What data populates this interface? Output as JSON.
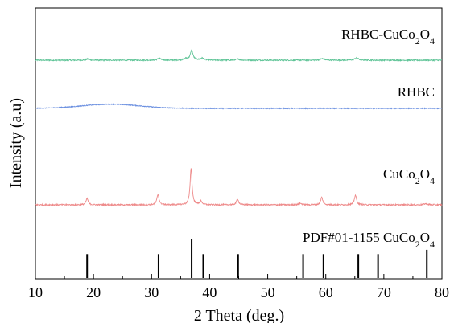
{
  "chart_data": {
    "type": "line",
    "xlabel": "2 Theta (deg.)",
    "ylabel": "Intensity (a.u)",
    "xlim": [
      10,
      80
    ],
    "x_ticks": [
      10,
      20,
      30,
      40,
      50,
      60,
      70,
      80
    ],
    "y_ticks_shown": false,
    "grid": false,
    "legend": "none",
    "series": [
      {
        "label_parts": [
          [
            "RHBC-CuCo",
            false
          ],
          [
            "2",
            true
          ],
          [
            "O",
            false
          ],
          [
            "4",
            true
          ]
        ],
        "color": "#5fc497",
        "display_offset": 0.3,
        "peak_scale": 0.06,
        "noise": 0.0035,
        "peaks": [
          {
            "x": 19.0,
            "height": 0.13,
            "width": 0.3
          },
          {
            "x": 31.3,
            "height": 0.22,
            "width": 0.3
          },
          {
            "x": 35.9,
            "height": 0.17,
            "width": 0.3
          },
          {
            "x": 36.9,
            "height": 1.0,
            "width": 0.28
          },
          {
            "x": 38.7,
            "height": 0.22,
            "width": 0.35
          },
          {
            "x": 44.9,
            "height": 0.12,
            "width": 0.35
          },
          {
            "x": 59.4,
            "height": 0.17,
            "width": 0.4
          },
          {
            "x": 65.3,
            "height": 0.24,
            "width": 0.4
          }
        ],
        "broad_humps": []
      },
      {
        "label": "RHBC",
        "color": "#6a8fe0",
        "display_offset": 0.0,
        "peak_scale": 0.06,
        "noise": 0.0025,
        "peaks": [],
        "broad_humps": [
          {
            "x": 23.0,
            "height": 0.22,
            "width": 5.0
          }
        ]
      },
      {
        "label_parts": [
          [
            "CuCo",
            false
          ],
          [
            "2",
            true
          ],
          [
            "O",
            false
          ],
          [
            "4",
            true
          ]
        ],
        "color": "#ee8a8a",
        "display_offset": -0.6,
        "peak_scale": 0.23,
        "noise": 0.004,
        "peaks": [
          {
            "x": 18.9,
            "height": 0.17,
            "width": 0.22
          },
          {
            "x": 31.1,
            "height": 0.28,
            "width": 0.22
          },
          {
            "x": 36.8,
            "height": 1.0,
            "width": 0.2
          },
          {
            "x": 38.5,
            "height": 0.1,
            "width": 0.25
          },
          {
            "x": 44.8,
            "height": 0.16,
            "width": 0.22
          },
          {
            "x": 55.6,
            "height": 0.04,
            "width": 0.3
          },
          {
            "x": 59.3,
            "height": 0.2,
            "width": 0.22
          },
          {
            "x": 65.1,
            "height": 0.26,
            "width": 0.22
          },
          {
            "x": 77.2,
            "height": 0.03,
            "width": 0.4
          }
        ],
        "broad_humps": []
      }
    ],
    "reference_pattern": {
      "label_parts": [
        [
          "PDF#01-1155 CuCo",
          false
        ],
        [
          "2",
          true
        ],
        [
          "O",
          false
        ],
        [
          "4",
          true
        ]
      ],
      "color": "#000000",
      "lines": [
        {
          "x": 18.9,
          "intensity": 0.55
        },
        {
          "x": 31.2,
          "intensity": 0.55
        },
        {
          "x": 36.9,
          "intensity": 0.9
        },
        {
          "x": 38.9,
          "intensity": 0.55
        },
        {
          "x": 44.9,
          "intensity": 0.55
        },
        {
          "x": 56.1,
          "intensity": 0.55
        },
        {
          "x": 59.6,
          "intensity": 0.55
        },
        {
          "x": 65.6,
          "intensity": 0.55
        },
        {
          "x": 69.0,
          "intensity": 0.55
        },
        {
          "x": 77.4,
          "intensity": 0.65
        }
      ]
    }
  }
}
